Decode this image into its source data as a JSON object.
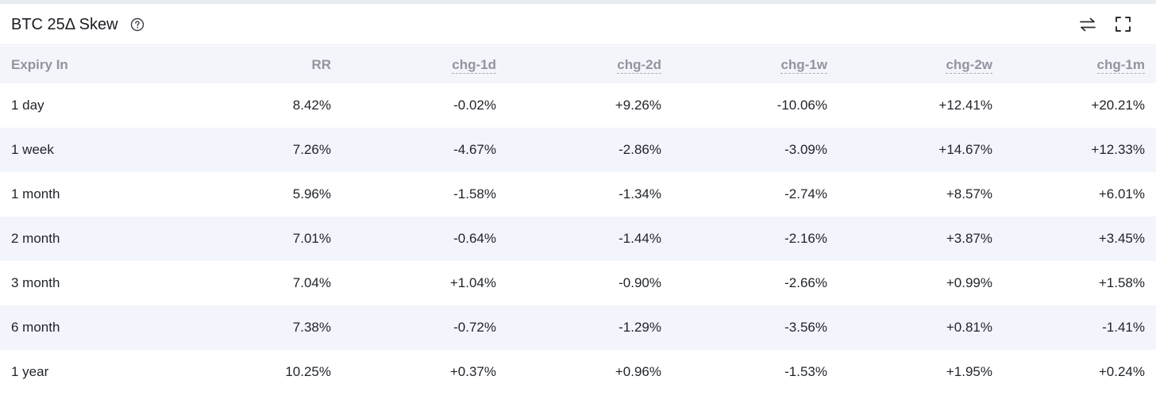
{
  "header": {
    "title": "BTC 25Δ Skew",
    "icons": [
      "help-circle-icon",
      "swap-arrows-icon",
      "fullscreen-icon"
    ]
  },
  "colors": {
    "positive": "#16a34a",
    "negative": "#e5242b"
  },
  "table": {
    "columns": [
      "Expiry In",
      "RR",
      "chg-1d",
      "chg-2d",
      "chg-1w",
      "chg-2w",
      "chg-1m"
    ],
    "rows": [
      [
        "1 day",
        "8.42%",
        "-0.02%",
        "+9.26%",
        "-10.06%",
        "+12.41%",
        "+20.21%"
      ],
      [
        "1 week",
        "7.26%",
        "-4.67%",
        "-2.86%",
        "-3.09%",
        "+14.67%",
        "+12.33%"
      ],
      [
        "1 month",
        "5.96%",
        "-1.58%",
        "-1.34%",
        "-2.74%",
        "+8.57%",
        "+6.01%"
      ],
      [
        "2 month",
        "7.01%",
        "-0.64%",
        "-1.44%",
        "-2.16%",
        "+3.87%",
        "+3.45%"
      ],
      [
        "3 month",
        "7.04%",
        "+1.04%",
        "-0.90%",
        "-2.66%",
        "+0.99%",
        "+1.58%"
      ],
      [
        "6 month",
        "7.38%",
        "-0.72%",
        "-1.29%",
        "-3.56%",
        "+0.81%",
        "-1.41%"
      ],
      [
        "1 year",
        "10.25%",
        "+0.37%",
        "+0.96%",
        "-1.53%",
        "+1.95%",
        "+0.24%"
      ]
    ]
  }
}
